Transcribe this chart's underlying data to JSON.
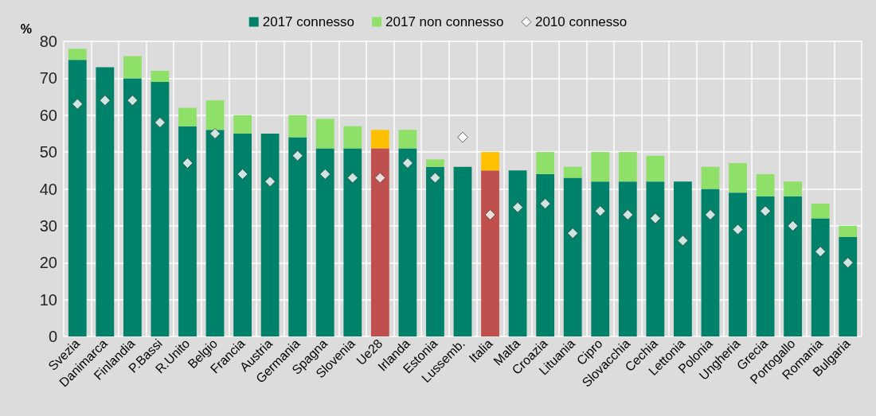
{
  "chart_data": {
    "type": "bar",
    "ylabel": "%",
    "stacked": true,
    "legend": "top",
    "grid": true,
    "categories": [
      "Svezia",
      "Danimarca",
      "Finlandia",
      "P.Bassi",
      "R.Unito",
      "Belgio",
      "Francia",
      "Austria",
      "Germania",
      "Spagna",
      "Slovenia",
      "Ue28",
      "Irlanda",
      "Estonia",
      "Lussemb.",
      "Italia",
      "Malta",
      "Croazia",
      "Lituania",
      "Cipro",
      "Slovacchia",
      "Cechia",
      "Lettonia",
      "Polonia",
      "Ungheria",
      "Grecia",
      "Portogallo",
      "Romania",
      "Bulgaria"
    ],
    "ylim": [
      0,
      80
    ],
    "yticks": [
      0,
      10,
      20,
      30,
      40,
      50,
      60,
      70,
      80
    ],
    "series": [
      {
        "name": "2017 connesso",
        "color": "#00826a",
        "colors": [
          "#00826a",
          "#00826a",
          "#00826a",
          "#00826a",
          "#00826a",
          "#00826a",
          "#00826a",
          "#00826a",
          "#00826a",
          "#00826a",
          "#00826a",
          "#c0504d",
          "#00826a",
          "#00826a",
          "#00826a",
          "#c0504d",
          "#00826a",
          "#00826a",
          "#00826a",
          "#00826a",
          "#00826a",
          "#00826a",
          "#00826a",
          "#00826a",
          "#00826a",
          "#00826a",
          "#00826a",
          "#00826a",
          "#00826a"
        ],
        "values": [
          75,
          73,
          70,
          69,
          57,
          56,
          55,
          55,
          54,
          51,
          51,
          51,
          51,
          46,
          46,
          45,
          45,
          44,
          43,
          42,
          42,
          42,
          42,
          40,
          39,
          38,
          38,
          32,
          27
        ]
      },
      {
        "name": "2017 non connesso",
        "color": "#8fe068",
        "colors": [
          "#8fe068",
          "#8fe068",
          "#8fe068",
          "#8fe068",
          "#8fe068",
          "#8fe068",
          "#8fe068",
          "#8fe068",
          "#8fe068",
          "#8fe068",
          "#8fe068",
          "#ffc000",
          "#8fe068",
          "#8fe068",
          "#8fe068",
          "#ffc000",
          "#8fe068",
          "#8fe068",
          "#8fe068",
          "#8fe068",
          "#8fe068",
          "#8fe068",
          "#8fe068",
          "#8fe068",
          "#8fe068",
          "#8fe068",
          "#8fe068",
          "#8fe068",
          "#8fe068"
        ],
        "values": [
          3,
          0,
          6,
          3,
          5,
          8,
          5,
          0,
          6,
          8,
          6,
          5,
          5,
          2,
          0,
          5,
          0,
          6,
          3,
          8,
          8,
          7,
          0,
          6,
          8,
          6,
          4,
          4,
          3
        ]
      },
      {
        "name": "2010 connesso",
        "type": "scatter",
        "marker": "diamond",
        "color": "#ffffff",
        "x": [
          "Svezia",
          "Danimarca",
          "Finlandia",
          "P.Bassi",
          "R.Unito",
          "Belgio",
          "Francia",
          "Austria",
          "Germania",
          "Spagna",
          "Slovenia",
          "Ue28",
          "Irlanda",
          "Estonia",
          "Lussemb.",
          "Italia",
          "Malta",
          "Croazia",
          "Lituania",
          "Cipro",
          "Slovacchia",
          "Cechia",
          "Lettonia",
          "Polonia",
          "Ungheria",
          "Grecia",
          "Portogallo",
          "Romania",
          "Bulgaria"
        ],
        "values": [
          63,
          64,
          64,
          58,
          47,
          55,
          44,
          42,
          49,
          44,
          43,
          43,
          47,
          43,
          54,
          33,
          35,
          36,
          28,
          34,
          33,
          32,
          26,
          33,
          29,
          34,
          30,
          23,
          20
        ]
      }
    ]
  }
}
